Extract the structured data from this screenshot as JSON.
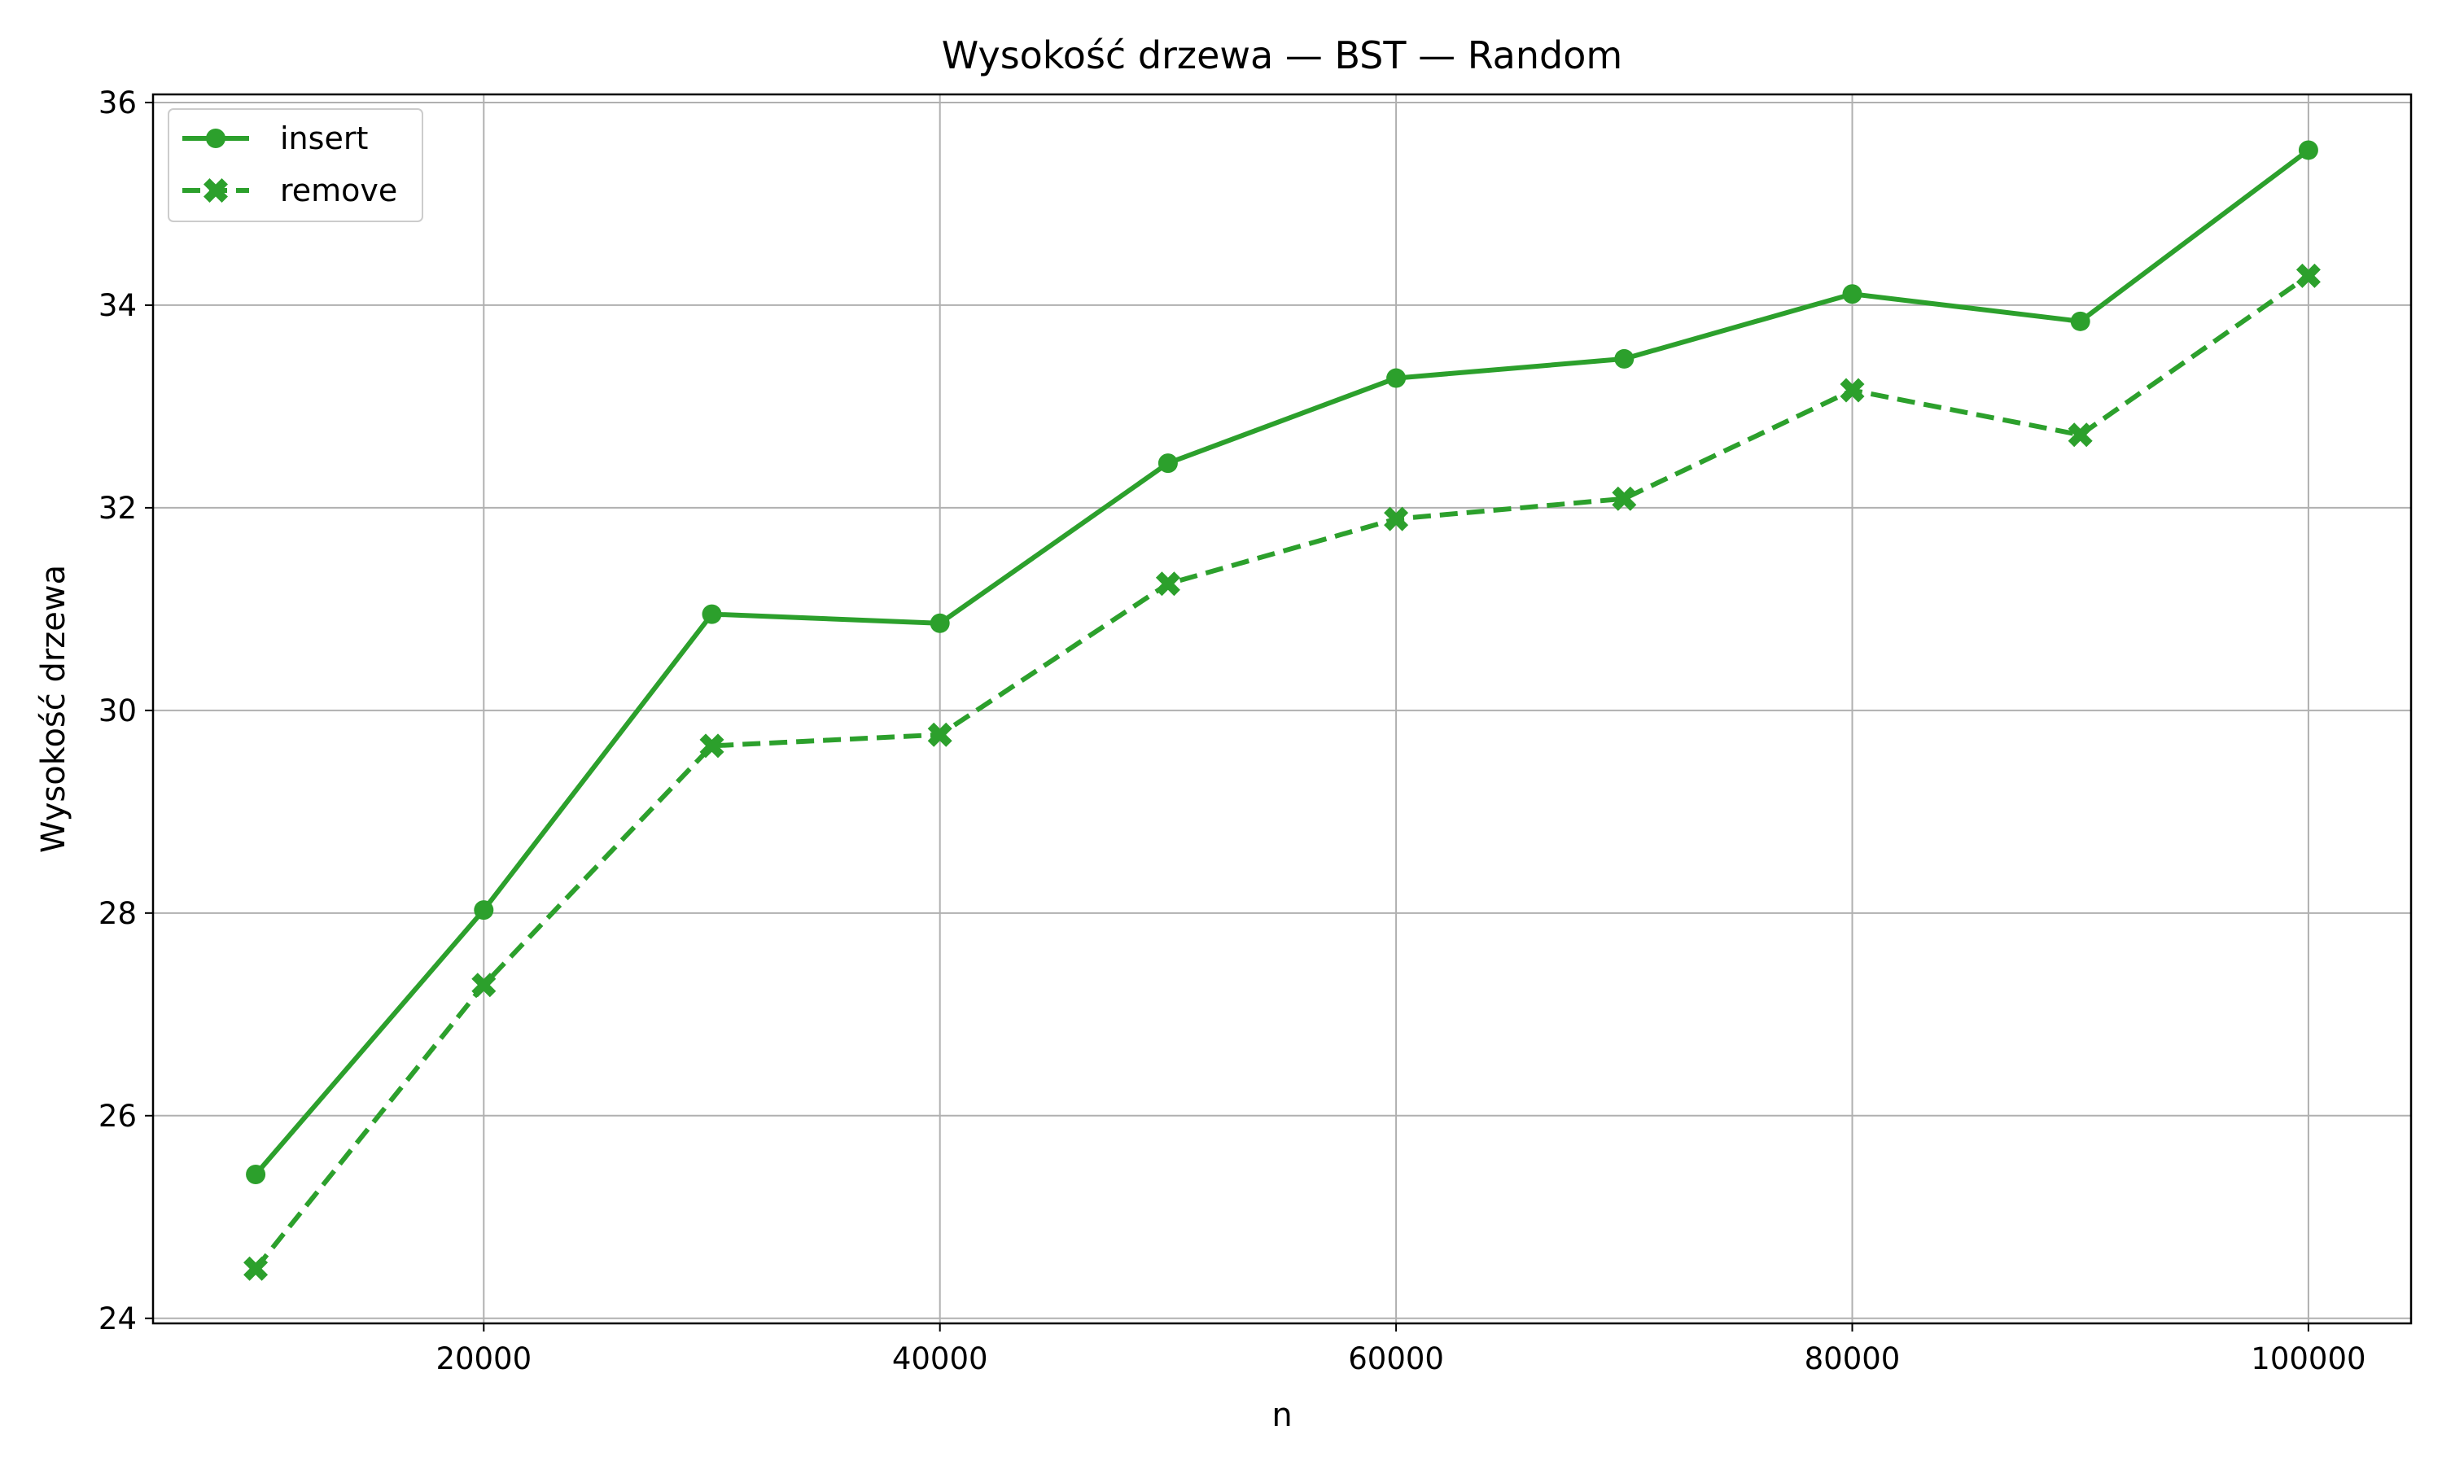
{
  "chart_data": {
    "type": "line",
    "title": "Wysokość drzewa — BST — Random",
    "xlabel": "n",
    "ylabel": "Wysokość drzewa",
    "x": [
      10000,
      20000,
      30000,
      40000,
      50000,
      60000,
      70000,
      80000,
      90000,
      100000
    ],
    "series": [
      {
        "name": "insert",
        "values": [
          25.42,
          28.03,
          30.95,
          30.86,
          32.44,
          33.28,
          33.47,
          34.11,
          33.84,
          35.53
        ],
        "color": "#2ca02c",
        "linestyle": "solid",
        "marker": "circle"
      },
      {
        "name": "remove",
        "values": [
          24.49,
          27.29,
          29.65,
          29.76,
          31.25,
          31.89,
          32.09,
          33.16,
          32.72,
          34.29
        ],
        "color": "#2ca02c",
        "linestyle": "dashed",
        "marker": "x-filled"
      }
    ],
    "xlim": [
      5500,
      104500
    ],
    "ylim": [
      23.95,
      36.08
    ],
    "xticks": [
      20000,
      40000,
      60000,
      80000,
      100000
    ],
    "xtick_labels": [
      "20000",
      "40000",
      "60000",
      "80000",
      "100000"
    ],
    "yticks": [
      24,
      26,
      28,
      30,
      32,
      34,
      36
    ],
    "ytick_labels": [
      "24",
      "26",
      "28",
      "30",
      "32",
      "34",
      "36"
    ],
    "grid": true,
    "legend_position": "top-left"
  }
}
